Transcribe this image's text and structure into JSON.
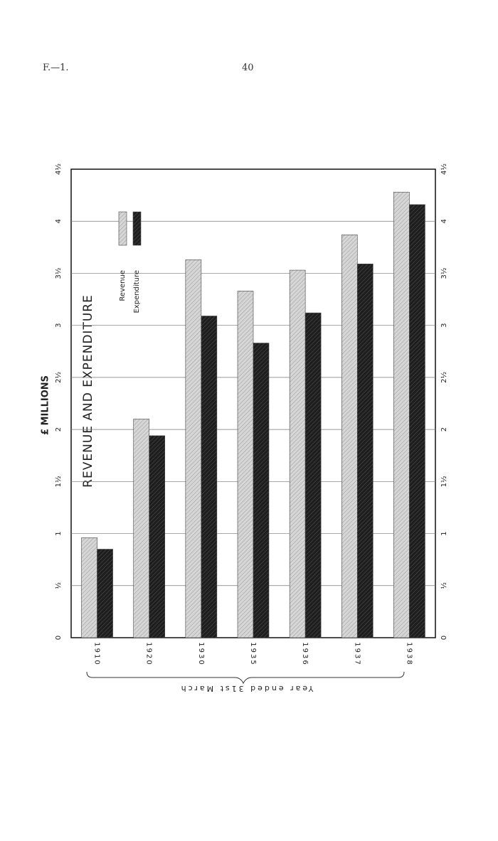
{
  "header": {
    "ref": "F.—1.",
    "page": "40"
  },
  "chart_data": {
    "type": "bar",
    "title": "REVENUE AND EXPENDITURE",
    "y_label": "£ MILLIONS",
    "x_label": "Year ended 31st March",
    "categories": [
      "1910",
      "1920",
      "1930",
      "1935",
      "1936",
      "1937",
      "1938"
    ],
    "series": [
      {
        "name": "Revenue",
        "color": "#d6d6d6",
        "values": [
          0.96,
          2.1,
          3.63,
          3.33,
          3.53,
          3.87,
          4.28
        ]
      },
      {
        "name": "Expenditure",
        "color": "#1e1e1e",
        "values": [
          0.85,
          1.94,
          3.09,
          2.83,
          3.12,
          3.59,
          4.16
        ]
      }
    ],
    "ylim": [
      0,
      4.5
    ],
    "yticks": [
      0,
      {
        "value": 0.5,
        "label": "½"
      },
      1,
      {
        "value": 1.5,
        "label": "1½"
      },
      2,
      {
        "value": 2.5,
        "label": "2½"
      },
      3,
      {
        "value": 3.5,
        "label": "3½"
      },
      4,
      {
        "value": 4.5,
        "label": "4½"
      }
    ],
    "grid": true,
    "legend": "upper-left"
  }
}
